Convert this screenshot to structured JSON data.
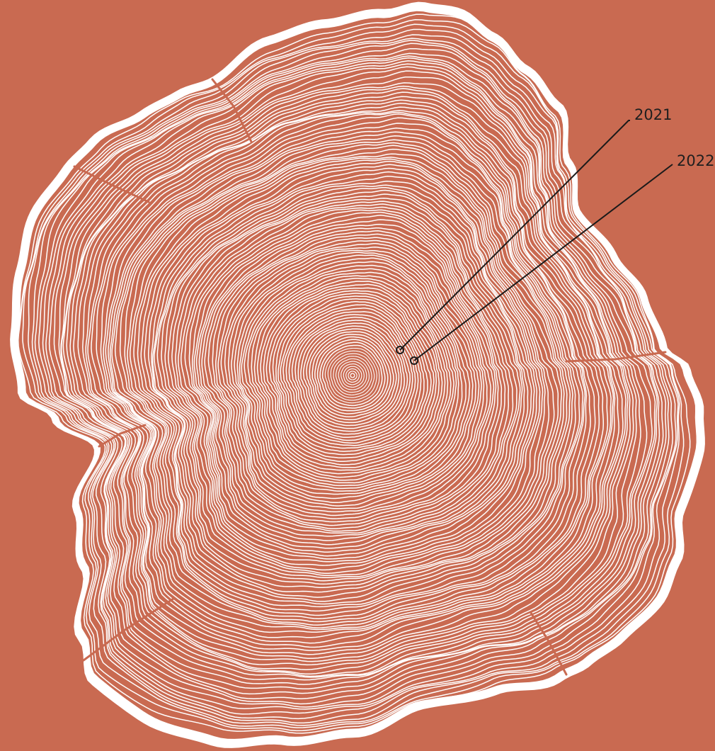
{
  "colors": {
    "background": "#c96a51",
    "rings": "#ffffff",
    "callout": "#1a1a1a"
  },
  "annotations": [
    {
      "label": "2021"
    },
    {
      "label": "2022"
    }
  ]
}
